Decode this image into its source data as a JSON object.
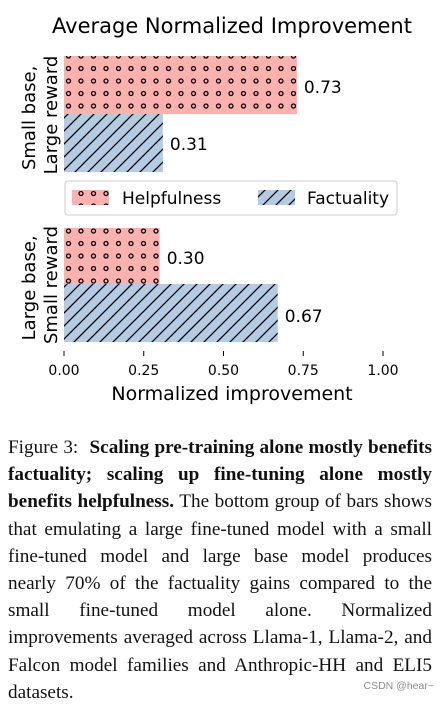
{
  "chart_data": {
    "type": "bar",
    "orientation": "horizontal",
    "title": "Average Normalized Improvement",
    "xlabel": "Normalized improvement",
    "ylabel": "",
    "xlim": [
      0,
      1
    ],
    "xticks": [
      "0.00",
      "0.25",
      "0.50",
      "0.75",
      "1.00"
    ],
    "groups": [
      {
        "label": [
          "Small base,",
          "Large reward"
        ],
        "bars": [
          {
            "series": "Helpfulness",
            "value": 0.73,
            "label": "0.73"
          },
          {
            "series": "Factuality",
            "value": 0.31,
            "label": "0.31"
          }
        ]
      },
      {
        "label": [
          "Large base,",
          "Small reward"
        ],
        "bars": [
          {
            "series": "Helpfulness",
            "value": 0.3,
            "label": "0.30"
          },
          {
            "series": "Factuality",
            "value": 0.67,
            "label": "0.67"
          }
        ]
      }
    ],
    "series": [
      {
        "name": "Helpfulness",
        "color": "#fbb1ad",
        "hatch": "dots"
      },
      {
        "name": "Factuality",
        "color": "#b3cce4",
        "hatch": "diagonal"
      }
    ],
    "legend": "between groups",
    "grid": false
  },
  "caption": {
    "label": "Figure 3:",
    "bold": "Scaling pre-training alone mostly benefits factuality; scaling up fine-tuning alone mostly benefits helpfulness.",
    "text": "The bottom group of bars shows that emulating a large fine-tuned model with a small fine-tuned model and large base model produces nearly 70% of the factuality gains compared to the small fine-tuned model alone. Normalized improvements averaged across Llama-1, Llama-2, and Falcon model families and Anthropic-HH and ELI5 datasets."
  },
  "watermark": "CSDN @hear~"
}
